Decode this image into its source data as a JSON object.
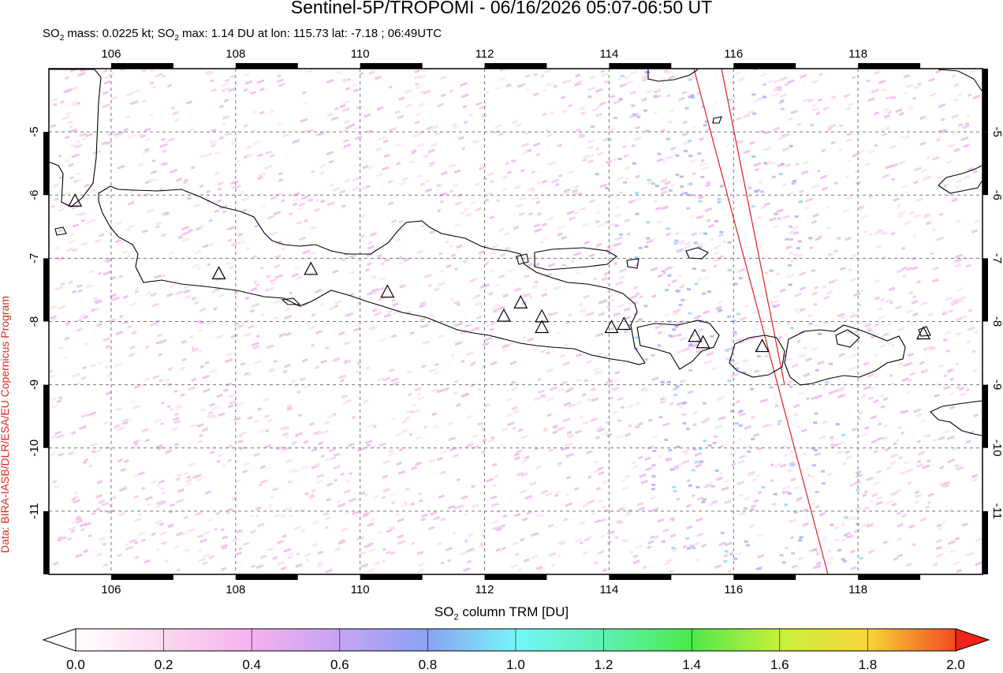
{
  "title": "Sentinel-5P/TROPOMI - 06/16/2026 05:07-06:50 UT",
  "subtitle": {
    "mass_prefix": "SO",
    "mass_sub": "2",
    "mass_text": " mass: 0.0225 kt; SO",
    "max_sub": "2",
    "max_text": " max: 1.14 DU at lon: 115.73 lat: -7.18 ; 06:49UTC"
  },
  "credit": "Data: BIRA-IASB/DLR/ESA/EU Copernicus Program",
  "map": {
    "lon_range": [
      105.0,
      120.0
    ],
    "lat_range": [
      -12.0,
      -4.0
    ],
    "lon_ticks": [
      "106",
      "108",
      "110",
      "112",
      "114",
      "116",
      "118"
    ],
    "lat_ticks": [
      "-5",
      "-6",
      "-7",
      "-8",
      "-9",
      "-10",
      "-11"
    ],
    "volcanoes": [
      {
        "lon": 105.42,
        "lat": -6.1
      },
      {
        "lon": 107.73,
        "lat": -7.25
      },
      {
        "lon": 109.21,
        "lat": -7.18
      },
      {
        "lon": 110.44,
        "lat": -7.54
      },
      {
        "lon": 112.31,
        "lat": -7.92
      },
      {
        "lon": 112.58,
        "lat": -7.71
      },
      {
        "lon": 112.92,
        "lat": -7.93
      },
      {
        "lon": 112.92,
        "lat": -8.1
      },
      {
        "lon": 114.04,
        "lat": -8.1
      },
      {
        "lon": 114.24,
        "lat": -8.05
      },
      {
        "lon": 115.38,
        "lat": -8.24
      },
      {
        "lon": 115.51,
        "lat": -8.34
      },
      {
        "lon": 116.46,
        "lat": -8.4
      },
      {
        "lon": 119.05,
        "lat": -8.2
      }
    ]
  },
  "colorbar": {
    "label_prefix": "SO",
    "label_sub": "2",
    "label_text": " column TRM [DU]",
    "ticks": [
      "0.0",
      "0.2",
      "0.4",
      "0.6",
      "0.8",
      "1.0",
      "1.2",
      "1.4",
      "1.6",
      "1.8",
      "2.0"
    ],
    "colors": [
      "#ffffff",
      "#fbd8ef",
      "#f5b0ee",
      "#c4a4f4",
      "#8aa2f2",
      "#76f6f8",
      "#5df0b2",
      "#4ce94a",
      "#c7f03c",
      "#f9d53a",
      "#f24a22"
    ]
  }
}
